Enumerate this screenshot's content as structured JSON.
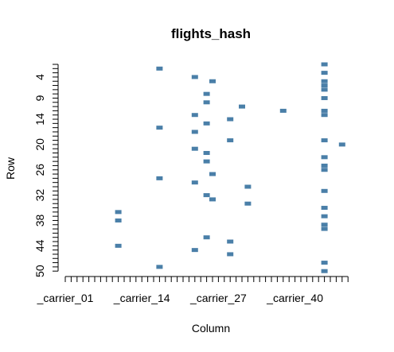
{
  "chart_data": {
    "type": "scatter",
    "title": "flights_hash",
    "xlabel": "Column",
    "ylabel": "Row",
    "x_tick_labels": [
      "_carrier_01",
      "_carrier_14",
      "_carrier_27",
      "_carrier_40"
    ],
    "x_tick_positions": [
      1,
      14,
      27,
      40
    ],
    "y_tick_labels": [
      "4",
      "9",
      "14",
      "20",
      "26",
      "32",
      "38",
      "44",
      "50"
    ],
    "y_tick_positions": [
      4,
      9,
      14,
      20,
      26,
      32,
      38,
      44,
      50
    ],
    "xlim": [
      1,
      49
    ],
    "ylim": [
      1,
      50
    ],
    "y_reversed": true,
    "marker_color": "#4a7fa8",
    "points": [
      [
        17,
        2
      ],
      [
        23,
        4
      ],
      [
        26,
        5
      ],
      [
        25,
        8
      ],
      [
        25,
        10
      ],
      [
        31,
        11
      ],
      [
        23,
        13
      ],
      [
        29,
        14
      ],
      [
        25,
        15
      ],
      [
        17,
        16
      ],
      [
        23,
        17
      ],
      [
        29,
        19
      ],
      [
        23,
        21
      ],
      [
        25,
        22
      ],
      [
        25,
        24
      ],
      [
        26,
        27
      ],
      [
        17,
        28
      ],
      [
        23,
        29
      ],
      [
        32,
        30
      ],
      [
        25,
        32
      ],
      [
        26,
        33
      ],
      [
        32,
        34
      ],
      [
        10,
        36
      ],
      [
        10,
        38
      ],
      [
        25,
        42
      ],
      [
        29,
        43
      ],
      [
        10,
        44
      ],
      [
        23,
        45
      ],
      [
        29,
        46
      ],
      [
        17,
        49
      ],
      [
        38,
        12
      ],
      [
        48,
        20
      ],
      [
        45,
        1
      ],
      [
        45,
        3
      ],
      [
        45,
        5
      ],
      [
        45,
        6
      ],
      [
        45,
        7
      ],
      [
        45,
        9
      ],
      [
        45,
        12
      ],
      [
        45,
        13
      ],
      [
        45,
        19
      ],
      [
        45,
        23
      ],
      [
        45,
        25
      ],
      [
        45,
        26
      ],
      [
        45,
        31
      ],
      [
        45,
        35
      ],
      [
        45,
        37
      ],
      [
        45,
        39
      ],
      [
        45,
        40
      ],
      [
        45,
        48
      ],
      [
        45,
        50
      ]
    ]
  }
}
